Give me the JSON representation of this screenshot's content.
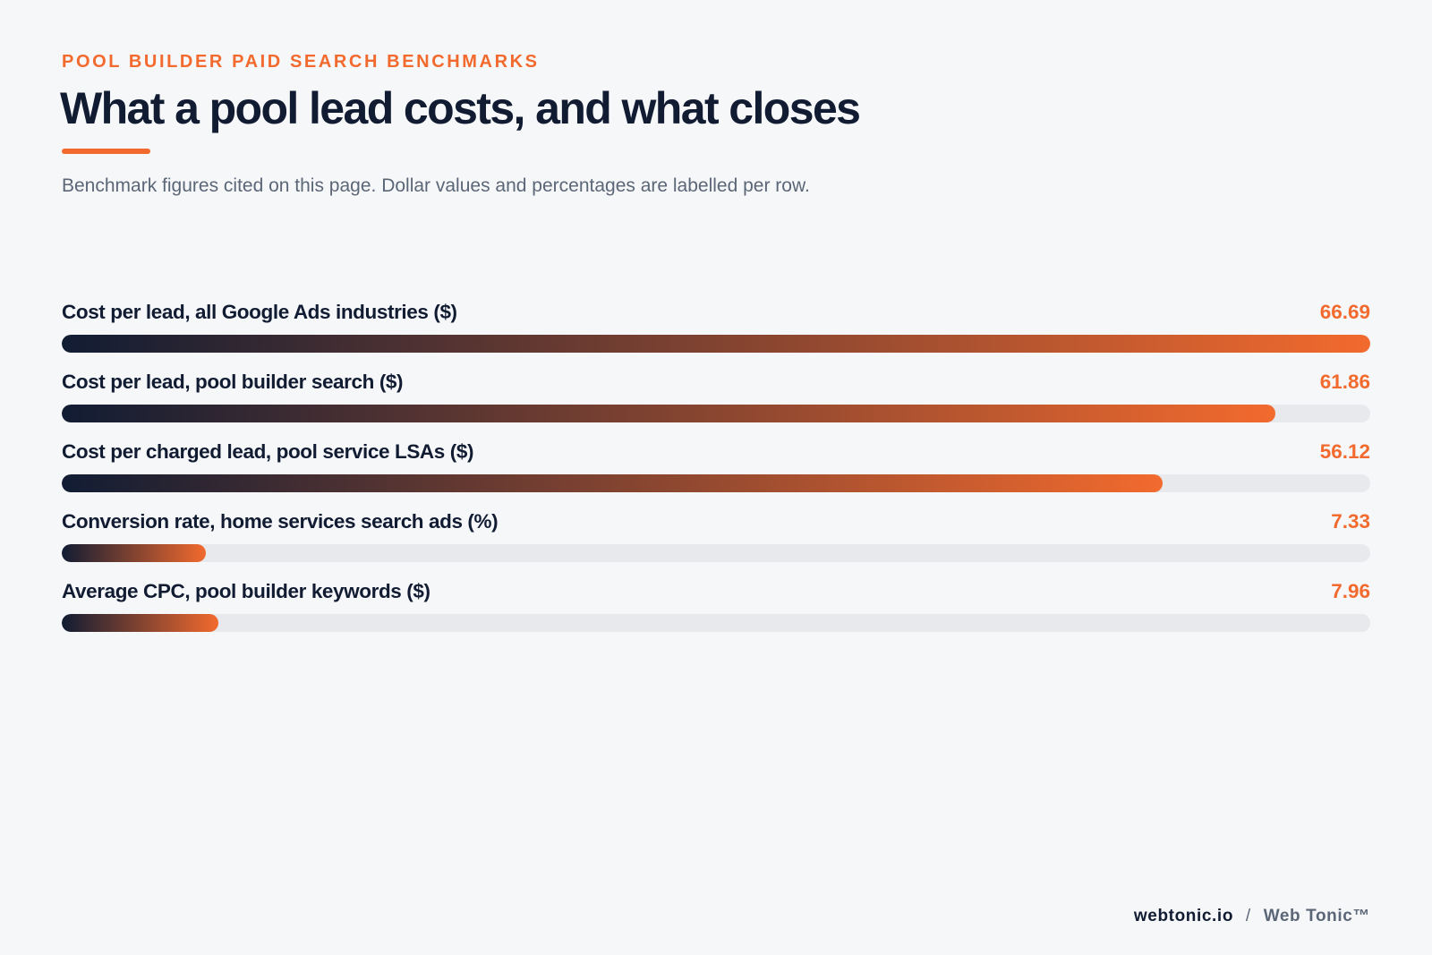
{
  "eyebrow": "POOL BUILDER PAID SEARCH BENCHMARKS",
  "title": "What a pool lead costs, and what closes",
  "subtitle": "Benchmark figures cited on this page. Dollar values and percentages are labelled per row.",
  "colors": {
    "accent": "#f26a2e",
    "navy": "#111c33",
    "track": "#e7e9ed",
    "muted": "#5b6677"
  },
  "chart_data": {
    "type": "bar",
    "orientation": "horizontal",
    "categories": [
      "Cost per lead, all Google Ads industries ($)",
      "Cost per lead, pool builder search ($)",
      "Cost per charged lead, pool service LSAs ($)",
      "Conversion rate, home services search ads (%)",
      "Average CPC, pool builder keywords ($)"
    ],
    "values": [
      66.69,
      61.86,
      56.12,
      7.33,
      7.96
    ],
    "value_labels": [
      "66.69",
      "61.86",
      "56.12",
      "7.33",
      "7.96"
    ],
    "xlim": [
      0,
      66.69
    ],
    "grid": false,
    "legend": "none"
  },
  "footer": {
    "site": "webtonic.io",
    "separator": "/",
    "brand": "Web Tonic™"
  }
}
